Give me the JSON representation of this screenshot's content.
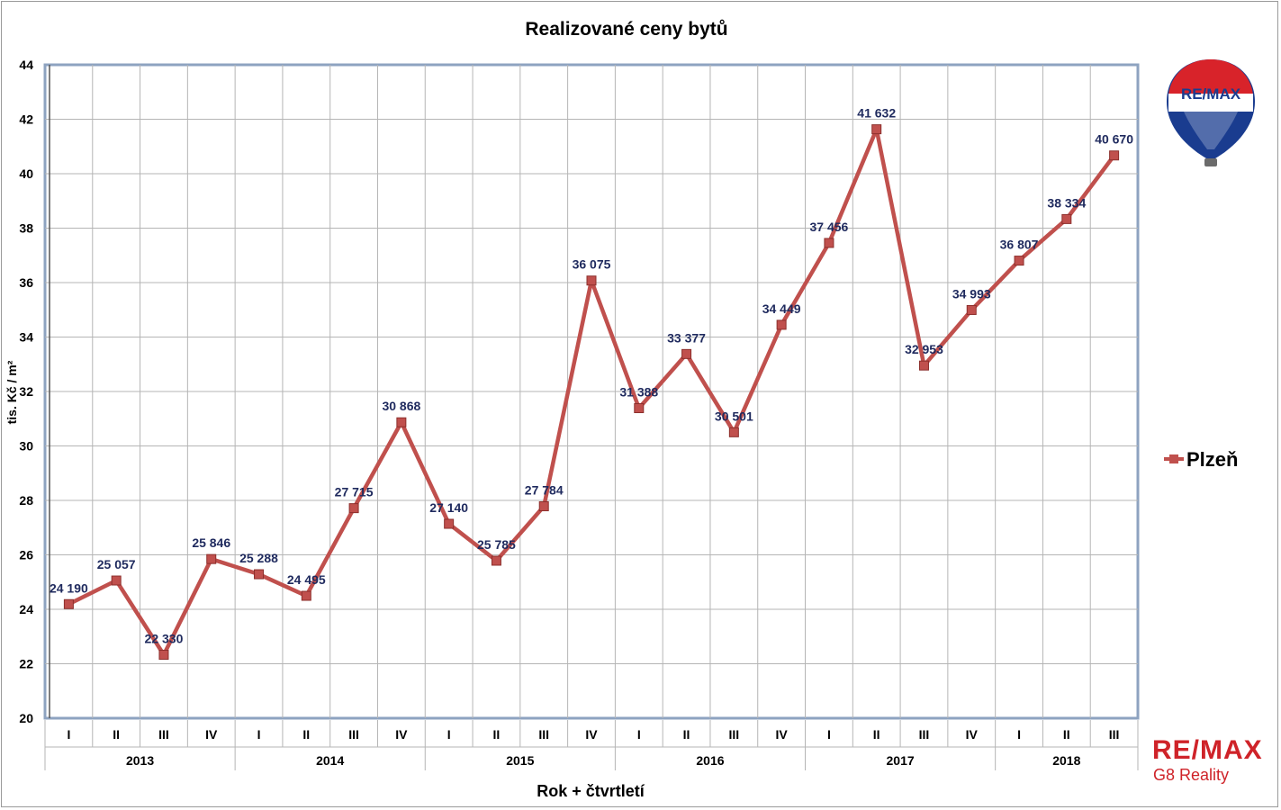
{
  "chart_data": {
    "type": "line",
    "title": "Realizované ceny bytů",
    "xlabel": "Rok + čtvrtletí",
    "ylabel": "tis. Kč / m²",
    "ylim": [
      20,
      44
    ],
    "yticks": [
      20,
      22,
      24,
      26,
      28,
      30,
      32,
      34,
      36,
      38,
      40,
      42,
      44
    ],
    "grid": true,
    "legend_position": "right",
    "years": [
      "2013",
      "2014",
      "2015",
      "2016",
      "2017",
      "2018"
    ],
    "quarters": [
      "I",
      "II",
      "III",
      "IV"
    ],
    "categories": [
      "I",
      "II",
      "III",
      "IV",
      "I",
      "II",
      "III",
      "IV",
      "I",
      "II",
      "III",
      "IV",
      "I",
      "II",
      "III",
      "IV",
      "I",
      "II",
      "III",
      "IV",
      "I",
      "II",
      "III"
    ],
    "series": [
      {
        "name": "Plzeň",
        "color": "#c0504d",
        "values": [
          24.19,
          25.057,
          22.33,
          25.846,
          25.288,
          24.495,
          27.715,
          30.868,
          27.14,
          25.785,
          27.784,
          36.075,
          31.388,
          33.377,
          30.501,
          34.449,
          37.456,
          41.632,
          32.953,
          34.993,
          36.807,
          38.334,
          40.67
        ],
        "labels": [
          "24 190",
          "25 057",
          "22 330",
          "25 846",
          "25 288",
          "24 495",
          "27 715",
          "30 868",
          "27 140",
          "25 785",
          "27 784",
          "36 075",
          "31 388",
          "33 377",
          "30 501",
          "34 449",
          "37 456",
          "41 632",
          "32 953",
          "34 993",
          "36 807",
          "38 334",
          "40 670"
        ]
      }
    ]
  },
  "logos": {
    "balloon_text": "RE/MAX",
    "brand_text": "RE/MAX",
    "brand_subtitle": "G8 Reality",
    "brand_color": "#cf2329",
    "balloon_blue": "#1a3c8f"
  }
}
